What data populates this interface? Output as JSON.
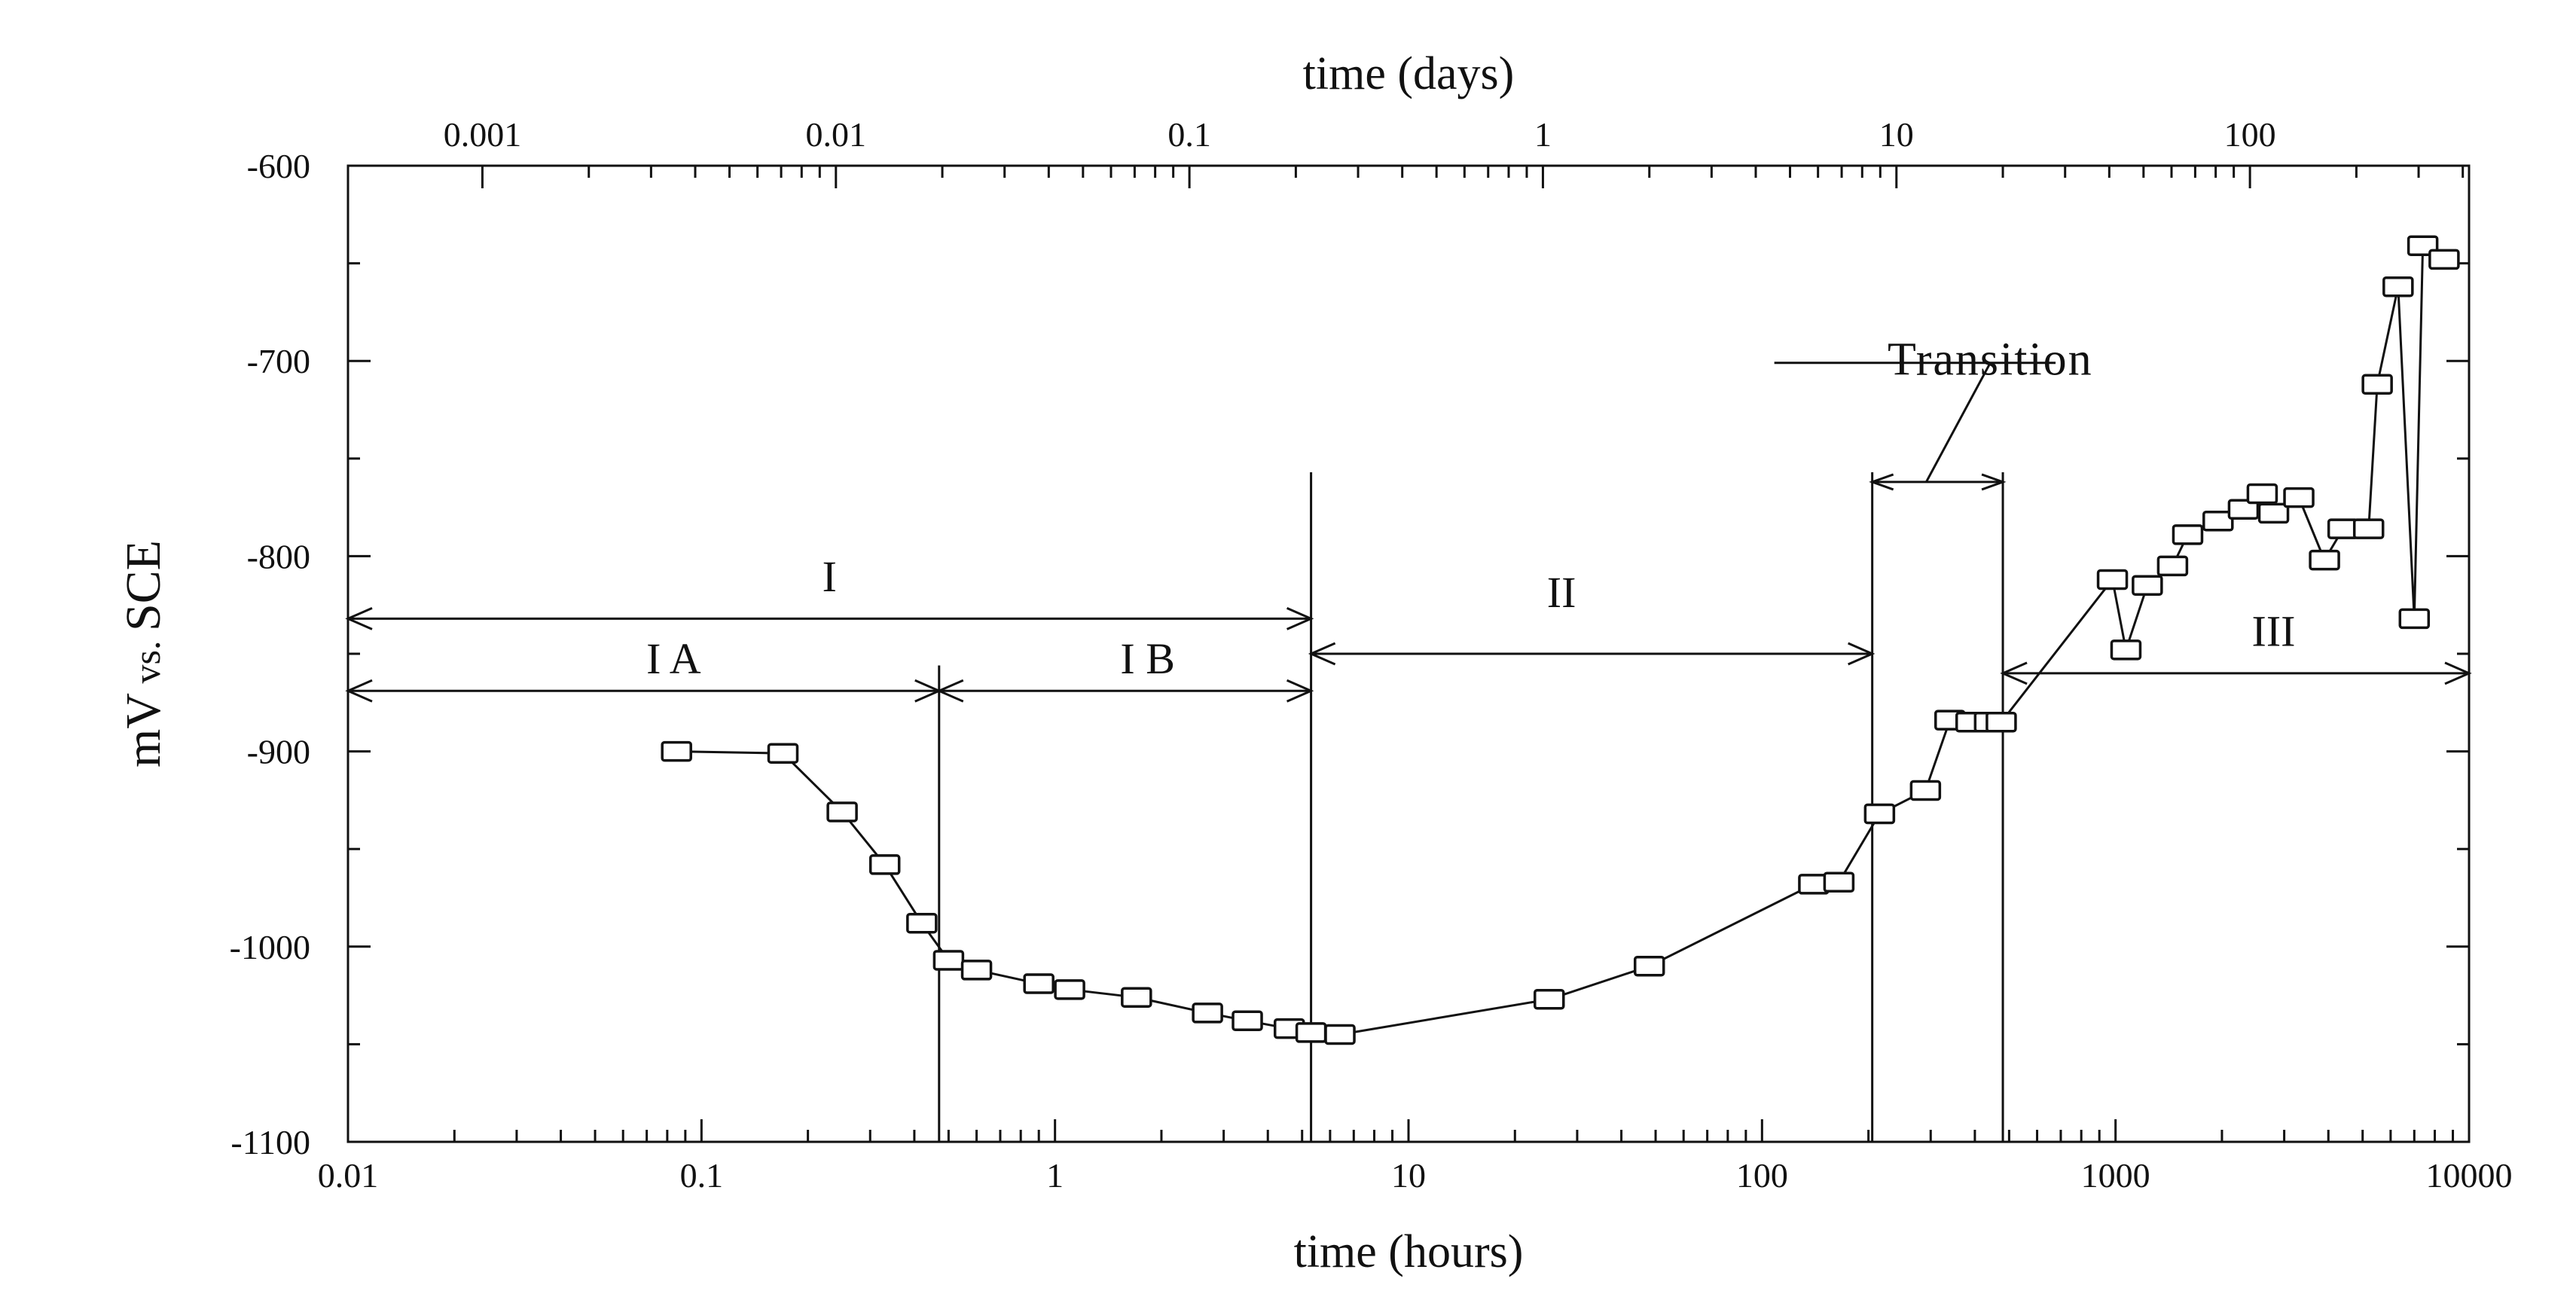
{
  "chart_data": {
    "type": "scatter",
    "title": "",
    "xlabel": "time (hours)",
    "x2label": "time (days)",
    "ylabel_main": "mV",
    "ylabel_small": " vs. ",
    "ylabel_end": "SCE",
    "x_scale": "log",
    "xlim": [
      0.01,
      10000
    ],
    "ylim": [
      -1100,
      -600
    ],
    "x_ticks": [
      0.01,
      0.1,
      1,
      10,
      100,
      1000,
      10000
    ],
    "x_tick_labels": [
      "0.01",
      "0.1",
      "1",
      "10",
      "100",
      "1000",
      "10000"
    ],
    "x2_ticks_days": [
      0.001,
      0.01,
      0.1,
      1,
      10,
      100
    ],
    "x2_tick_labels": [
      "0.001",
      "0.01",
      "0.1",
      "1",
      "10",
      "100"
    ],
    "y_ticks": [
      -600,
      -700,
      -800,
      -900,
      -1000,
      -1100
    ],
    "y_tick_labels": [
      "-600",
      "-700",
      "-800",
      "-900",
      "-1000",
      "-1100"
    ],
    "regions": {
      "I": {
        "label": "I",
        "from": 0.01,
        "to": 5.3
      },
      "IA": {
        "label": "I A",
        "from": 0.01,
        "to": 0.47
      },
      "IB": {
        "label": "I B",
        "from": 0.47,
        "to": 5.3
      },
      "II": {
        "label": "II",
        "from": 5.3,
        "to": 205
      },
      "transition": {
        "label": "Transition",
        "from": 205,
        "to": 480
      },
      "III": {
        "label": "III",
        "from": 480,
        "to": 10000
      }
    },
    "series": [
      {
        "points": [
          [
            0.085,
            -900
          ],
          [
            0.17,
            -901
          ],
          [
            0.25,
            -931
          ],
          [
            0.33,
            -958
          ],
          [
            0.42,
            -988
          ],
          [
            0.5,
            -1007
          ],
          [
            0.6,
            -1012
          ],
          [
            0.9,
            -1019
          ],
          [
            1.1,
            -1022
          ],
          [
            1.7,
            -1026
          ],
          [
            2.7,
            -1034
          ],
          [
            3.5,
            -1038
          ],
          [
            4.6,
            -1042
          ],
          [
            5.3,
            -1044
          ],
          [
            6.4,
            -1045
          ],
          [
            25,
            -1027
          ],
          [
            48,
            -1010
          ],
          [
            140,
            -968
          ],
          [
            165,
            -967
          ],
          [
            215,
            -932
          ],
          [
            290,
            -920
          ],
          [
            340,
            -884
          ],
          [
            390,
            -885
          ],
          [
            440,
            -885
          ],
          [
            475,
            -885
          ],
          [
            980,
            -812
          ],
          [
            1070,
            -848
          ],
          [
            1230,
            -815
          ],
          [
            1450,
            -805
          ],
          [
            1600,
            -789
          ],
          [
            1950,
            -782
          ],
          [
            2300,
            -776
          ],
          [
            2600,
            -768
          ],
          [
            2800,
            -778
          ],
          [
            3300,
            -770
          ],
          [
            3900,
            -802
          ],
          [
            4400,
            -786
          ],
          [
            5200,
            -786
          ],
          [
            5500,
            -712
          ],
          [
            6300,
            -662
          ],
          [
            7000,
            -832
          ],
          [
            7400,
            -641
          ],
          [
            8500,
            -648
          ]
        ]
      }
    ]
  }
}
